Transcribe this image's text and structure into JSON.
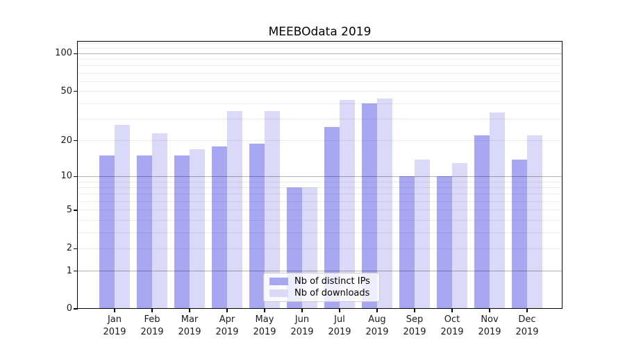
{
  "chart_data": {
    "type": "bar",
    "title": "MEEBOdata 2019",
    "categories": [
      "Jan",
      "Feb",
      "Mar",
      "Apr",
      "May",
      "Jun",
      "Jul",
      "Aug",
      "Sep",
      "Oct",
      "Nov",
      "Dec"
    ],
    "category_year": "2019",
    "series": [
      {
        "name": "Nb of distinct IPs",
        "color": "#a8a8f2",
        "values": [
          15,
          15,
          15,
          18,
          19,
          8,
          26,
          40,
          10,
          10,
          22,
          14
        ]
      },
      {
        "name": "Nb of downloads",
        "color": "#dadaf8",
        "values": [
          27,
          23,
          17,
          35,
          35,
          8,
          43,
          44,
          14,
          13,
          34,
          22
        ]
      }
    ],
    "xlabel": "",
    "ylabel": "",
    "yscale": "log1p",
    "ylim": [
      0,
      124
    ],
    "y_tick_labels": [
      "100",
      "50",
      "20",
      "10",
      "5",
      "2",
      "1",
      "0"
    ],
    "y_tick_values": [
      100,
      50,
      20,
      10,
      5,
      2,
      1,
      0
    ],
    "y_major_gridline_values": [
      1,
      10,
      100
    ],
    "y_minor_gridline_values": [
      2,
      3,
      4,
      5,
      6,
      7,
      8,
      9,
      20,
      30,
      40,
      50,
      60,
      70,
      80,
      90,
      110,
      120
    ],
    "grid": true,
    "legend_position": "lower center"
  }
}
